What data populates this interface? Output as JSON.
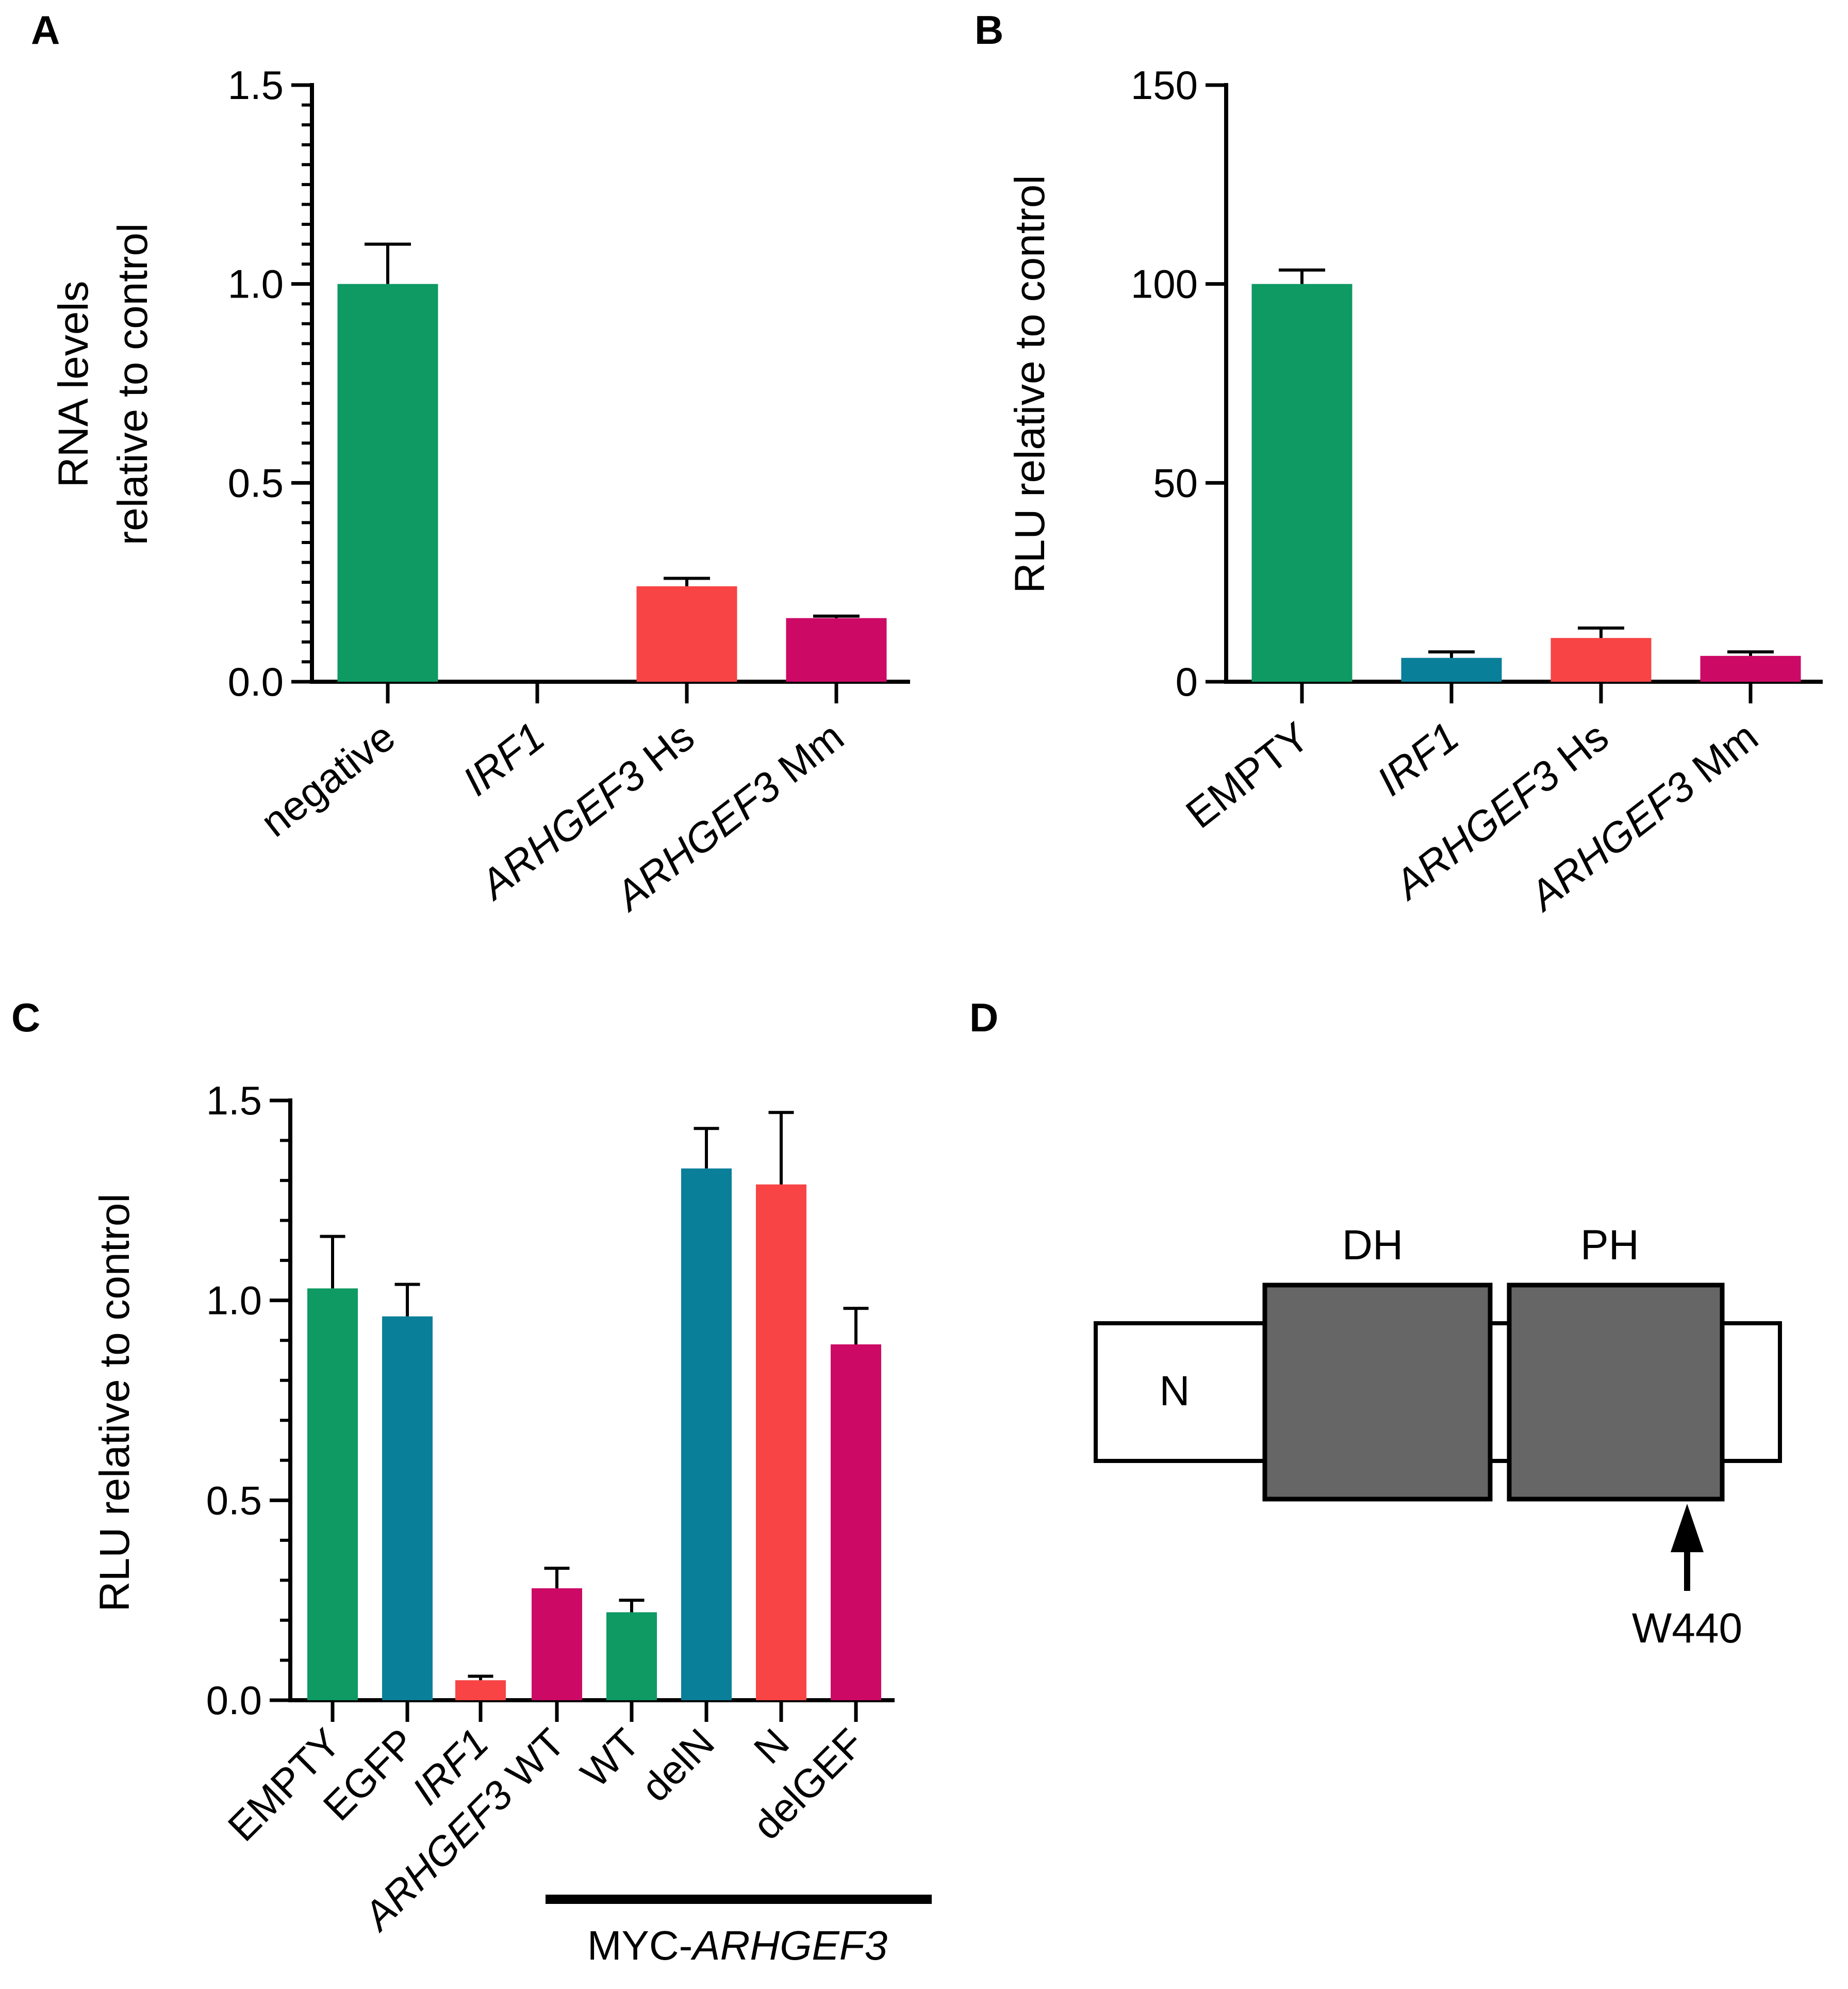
{
  "panels": {
    "a": {
      "label": "A"
    },
    "b": {
      "label": "B"
    },
    "c": {
      "label": "C"
    },
    "d": {
      "label": "D"
    }
  },
  "colors": {
    "green": "#0f9963",
    "teal": "#0a7f99",
    "red": "#f84444",
    "magenta": "#cc0a66",
    "domain_fill": "#666666"
  },
  "chart_data": [
    {
      "id": "A",
      "type": "bar",
      "ylabel_line1": "RNA levels",
      "ylabel_line2": "relative to control",
      "ylim": [
        0,
        1.5
      ],
      "yticks": [
        "0.0",
        "0.5",
        "1.0",
        "1.5"
      ],
      "categories": [
        {
          "italic": "",
          "plain": "negative"
        },
        {
          "italic": "IRF1",
          "plain": ""
        },
        {
          "italic": "ARHGEF3",
          "plain": " Hs"
        },
        {
          "italic": "ARHGEF3",
          "plain": "  Mm"
        }
      ],
      "values": [
        1.0,
        0.0,
        0.24,
        0.16
      ],
      "errors": [
        0.1,
        0.0,
        0.02,
        0.005
      ],
      "colors": [
        "green",
        "green",
        "red",
        "magenta"
      ]
    },
    {
      "id": "B",
      "type": "bar",
      "ylabel": "RLU relative to control",
      "ylim": [
        0,
        150
      ],
      "yticks": [
        "0",
        "50",
        "100",
        "150"
      ],
      "categories": [
        {
          "italic": "",
          "plain": "EMPTY"
        },
        {
          "italic": "IRF1",
          "plain": ""
        },
        {
          "italic": "ARHGEF3",
          "plain": " Hs"
        },
        {
          "italic": "ARHGEF3",
          "plain": "  Mm"
        }
      ],
      "values": [
        100,
        6,
        11,
        6.5
      ],
      "errors": [
        3.5,
        1.5,
        2.5,
        1
      ],
      "colors": [
        "green",
        "teal",
        "red",
        "magenta"
      ]
    },
    {
      "id": "C",
      "type": "bar",
      "ylabel": "RLU relative to control",
      "ylim": [
        0,
        1.5
      ],
      "yticks": [
        "0.0",
        "0.5",
        "1.0",
        "1.5"
      ],
      "categories": [
        {
          "italic": "",
          "plain": "EMPTY"
        },
        {
          "italic": "",
          "plain": "EGFP"
        },
        {
          "italic": "IRF1",
          "plain": ""
        },
        {
          "italic": "ARHGEF3",
          "plain": " WT"
        },
        {
          "italic": "",
          "plain": "WT"
        },
        {
          "italic": "",
          "plain": "delN"
        },
        {
          "italic": "",
          "plain": "N"
        },
        {
          "italic": "",
          "plain": "delGEF"
        }
      ],
      "values": [
        1.03,
        0.96,
        0.05,
        0.28,
        0.22,
        1.33,
        1.29,
        0.89
      ],
      "errors": [
        0.13,
        0.08,
        0.01,
        0.05,
        0.03,
        0.1,
        0.18,
        0.09
      ],
      "colors": [
        "green",
        "teal",
        "red",
        "magenta",
        "green",
        "teal",
        "red",
        "magenta"
      ],
      "group_label_plain": "MYC-",
      "group_label_italic": "ARHGEF3"
    }
  ],
  "diagram": {
    "n_label": "N",
    "dh_label": "DH",
    "ph_label": "PH",
    "mutation_label": "W440"
  }
}
